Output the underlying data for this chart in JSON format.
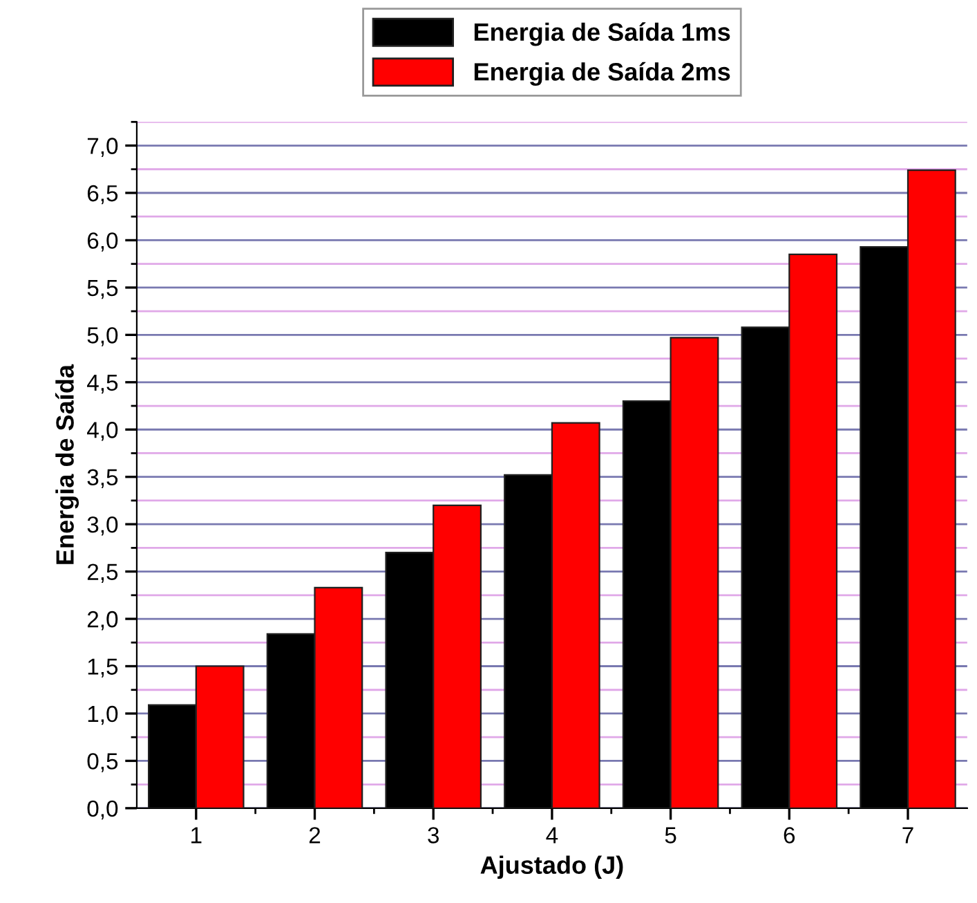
{
  "chart_data": {
    "type": "bar",
    "xlabel": "Ajustado (J)",
    "ylabel": "Energia de Saída",
    "categories": [
      "1",
      "2",
      "3",
      "4",
      "5",
      "6",
      "7"
    ],
    "series": [
      {
        "name": "Energia de Saída 1ms",
        "color": "#000000",
        "values": [
          1.09,
          1.84,
          2.7,
          3.52,
          4.3,
          5.08,
          5.93
        ]
      },
      {
        "name": "Energia de Saída 2ms",
        "color": "#ff0000",
        "values": [
          1.5,
          2.33,
          3.2,
          4.07,
          4.97,
          5.85,
          6.74
        ]
      }
    ],
    "ylim": [
      0,
      7.25
    ],
    "yticks": [
      {
        "value": 0,
        "label": "0,0"
      },
      {
        "value": 0.25,
        "label": null
      },
      {
        "value": 0.5,
        "label": "0,5"
      },
      {
        "value": 0.75,
        "label": null
      },
      {
        "value": 1,
        "label": "1,0"
      },
      {
        "value": 1.25,
        "label": null
      },
      {
        "value": 1.5,
        "label": "1,5"
      },
      {
        "value": 1.75,
        "label": null
      },
      {
        "value": 2,
        "label": "2,0"
      },
      {
        "value": 2.25,
        "label": null
      },
      {
        "value": 2.5,
        "label": "2,5"
      },
      {
        "value": 2.75,
        "label": null
      },
      {
        "value": 3,
        "label": "3,0"
      },
      {
        "value": 3.25,
        "label": null
      },
      {
        "value": 3.5,
        "label": "3,5"
      },
      {
        "value": 3.75,
        "label": null
      },
      {
        "value": 4,
        "label": "4,0"
      },
      {
        "value": 4.25,
        "label": null
      },
      {
        "value": 4.5,
        "label": "4,5"
      },
      {
        "value": 4.75,
        "label": null
      },
      {
        "value": 5,
        "label": "5,0"
      },
      {
        "value": 5.25,
        "label": null
      },
      {
        "value": 5.5,
        "label": "5,5"
      },
      {
        "value": 5.75,
        "label": null
      },
      {
        "value": 6,
        "label": "6,0"
      },
      {
        "value": 6.25,
        "label": null
      },
      {
        "value": 6.5,
        "label": "6,5"
      },
      {
        "value": 6.75,
        "label": null
      },
      {
        "value": 7,
        "label": "7,0"
      },
      {
        "value": 7.25,
        "label": null
      }
    ],
    "grid": "y",
    "legend": "top"
  }
}
